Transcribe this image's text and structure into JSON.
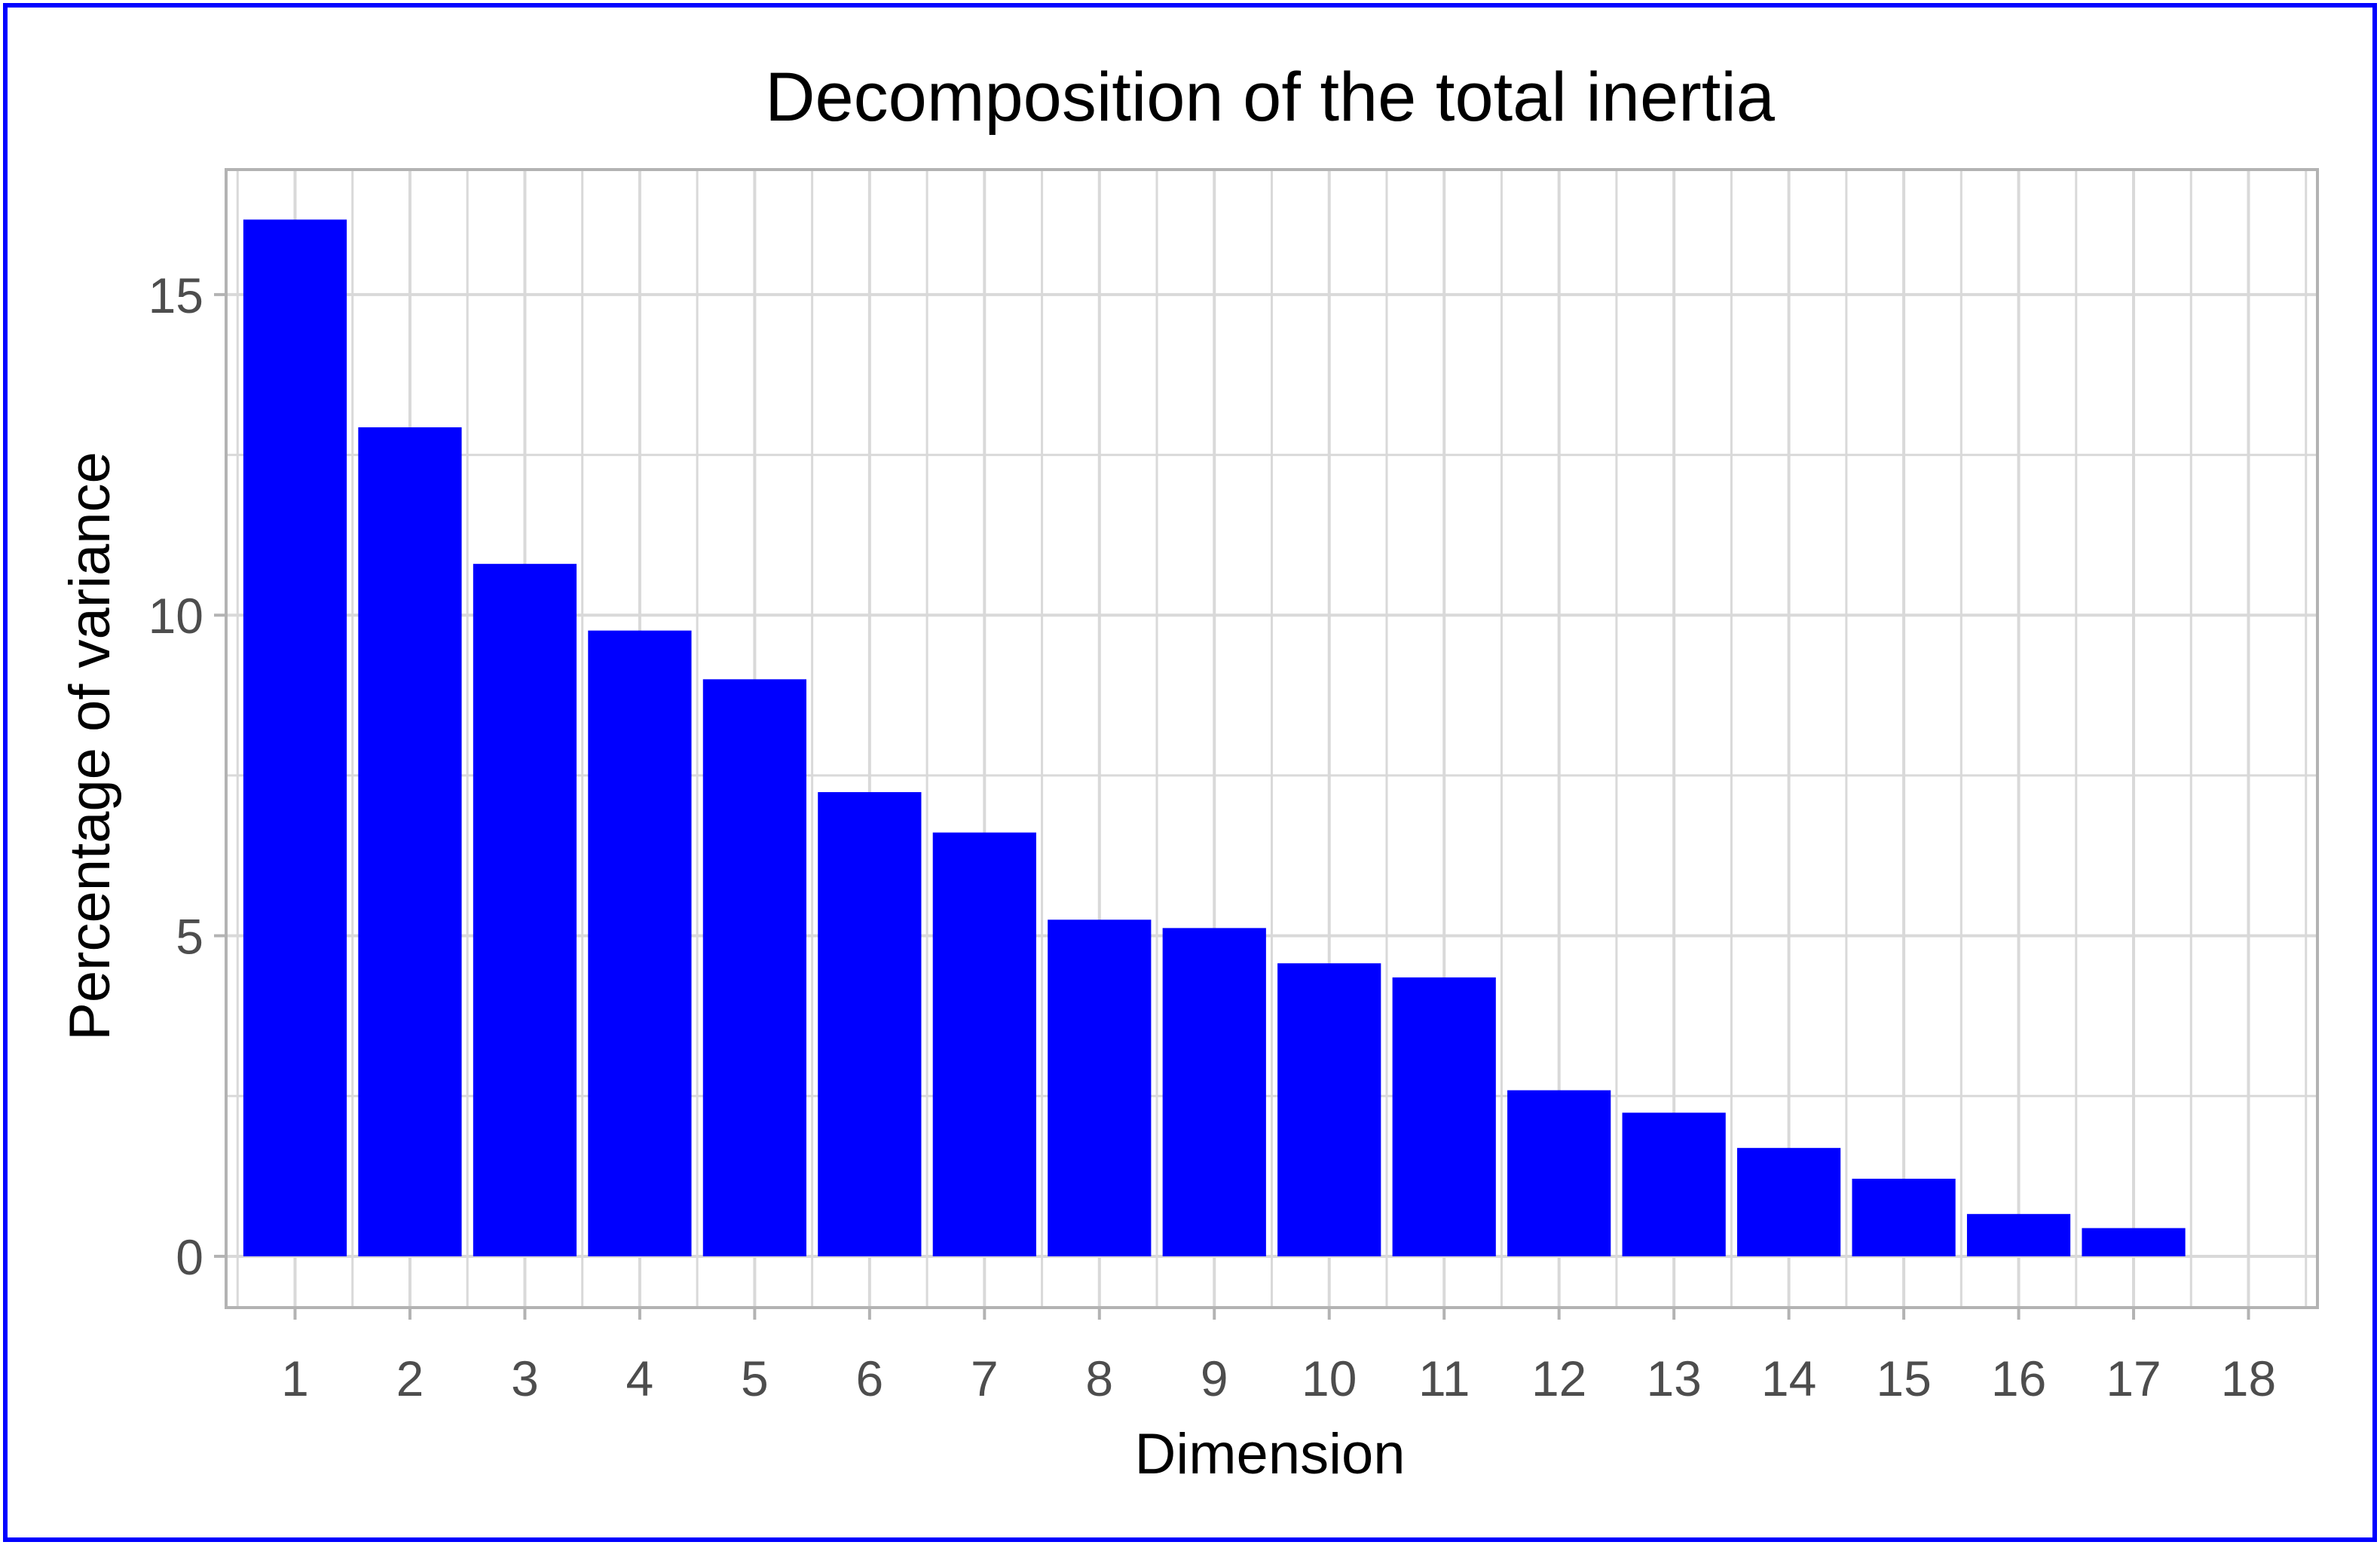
{
  "chart_data": {
    "type": "bar",
    "title": "Decomposition of the total inertia",
    "xlabel": "Dimension",
    "ylabel": "Percentage of variance",
    "categories": [
      "1",
      "2",
      "3",
      "4",
      "5",
      "6",
      "7",
      "8",
      "9",
      "10",
      "11",
      "12",
      "13",
      "14",
      "15",
      "16",
      "17",
      "18"
    ],
    "values": [
      16.17,
      12.93,
      10.8,
      9.76,
      9.0,
      7.24,
      6.61,
      5.25,
      5.12,
      4.57,
      4.35,
      2.59,
      2.24,
      1.69,
      1.21,
      0.66,
      0.44,
      0
    ],
    "yticks": [
      0,
      5,
      10,
      15
    ],
    "ylim": [
      -0.8,
      16.95
    ],
    "grid": true,
    "legend": "none",
    "colors": {
      "bar": "#0000ff",
      "grid": "#d9d9d9",
      "panel_border": "#b3b3b3",
      "frame": "#0000ff",
      "tick_text": "#4d4d4d"
    }
  }
}
